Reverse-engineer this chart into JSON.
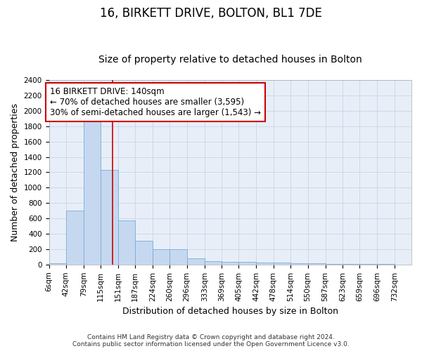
{
  "title": "16, BIRKETT DRIVE, BOLTON, BL1 7DE",
  "subtitle": "Size of property relative to detached houses in Bolton",
  "xlabel": "Distribution of detached houses by size in Bolton",
  "ylabel": "Number of detached properties",
  "footer_line1": "Contains HM Land Registry data © Crown copyright and database right 2024.",
  "footer_line2": "Contains public sector information licensed under the Open Government Licence v3.0.",
  "bin_edges": [
    6,
    42,
    79,
    115,
    151,
    187,
    224,
    260,
    296,
    333,
    369,
    405,
    442,
    478,
    514,
    550,
    587,
    623,
    659,
    696,
    732
  ],
  "bar_heights": [
    15,
    700,
    1950,
    1230,
    570,
    305,
    200,
    200,
    85,
    45,
    35,
    35,
    30,
    25,
    20,
    15,
    10,
    8,
    5,
    5
  ],
  "bar_color": "#c5d8f0",
  "bar_edgecolor": "#7aadd4",
  "red_line_x": 140,
  "annotation_line1": "16 BIRKETT DRIVE: 140sqm",
  "annotation_line2": "← 70% of detached houses are smaller (3,595)",
  "annotation_line3": "30% of semi-detached houses are larger (1,543) →",
  "ylim": [
    0,
    2400
  ],
  "yticks": [
    0,
    200,
    400,
    600,
    800,
    1000,
    1200,
    1400,
    1600,
    1800,
    2000,
    2200,
    2400
  ],
  "title_fontsize": 12,
  "subtitle_fontsize": 10,
  "xlabel_fontsize": 9,
  "ylabel_fontsize": 9,
  "tick_fontsize": 7.5,
  "annotation_fontsize": 8.5,
  "background_color": "#ffffff",
  "grid_color": "#c8d4e8",
  "axes_bg_color": "#e8eef8"
}
